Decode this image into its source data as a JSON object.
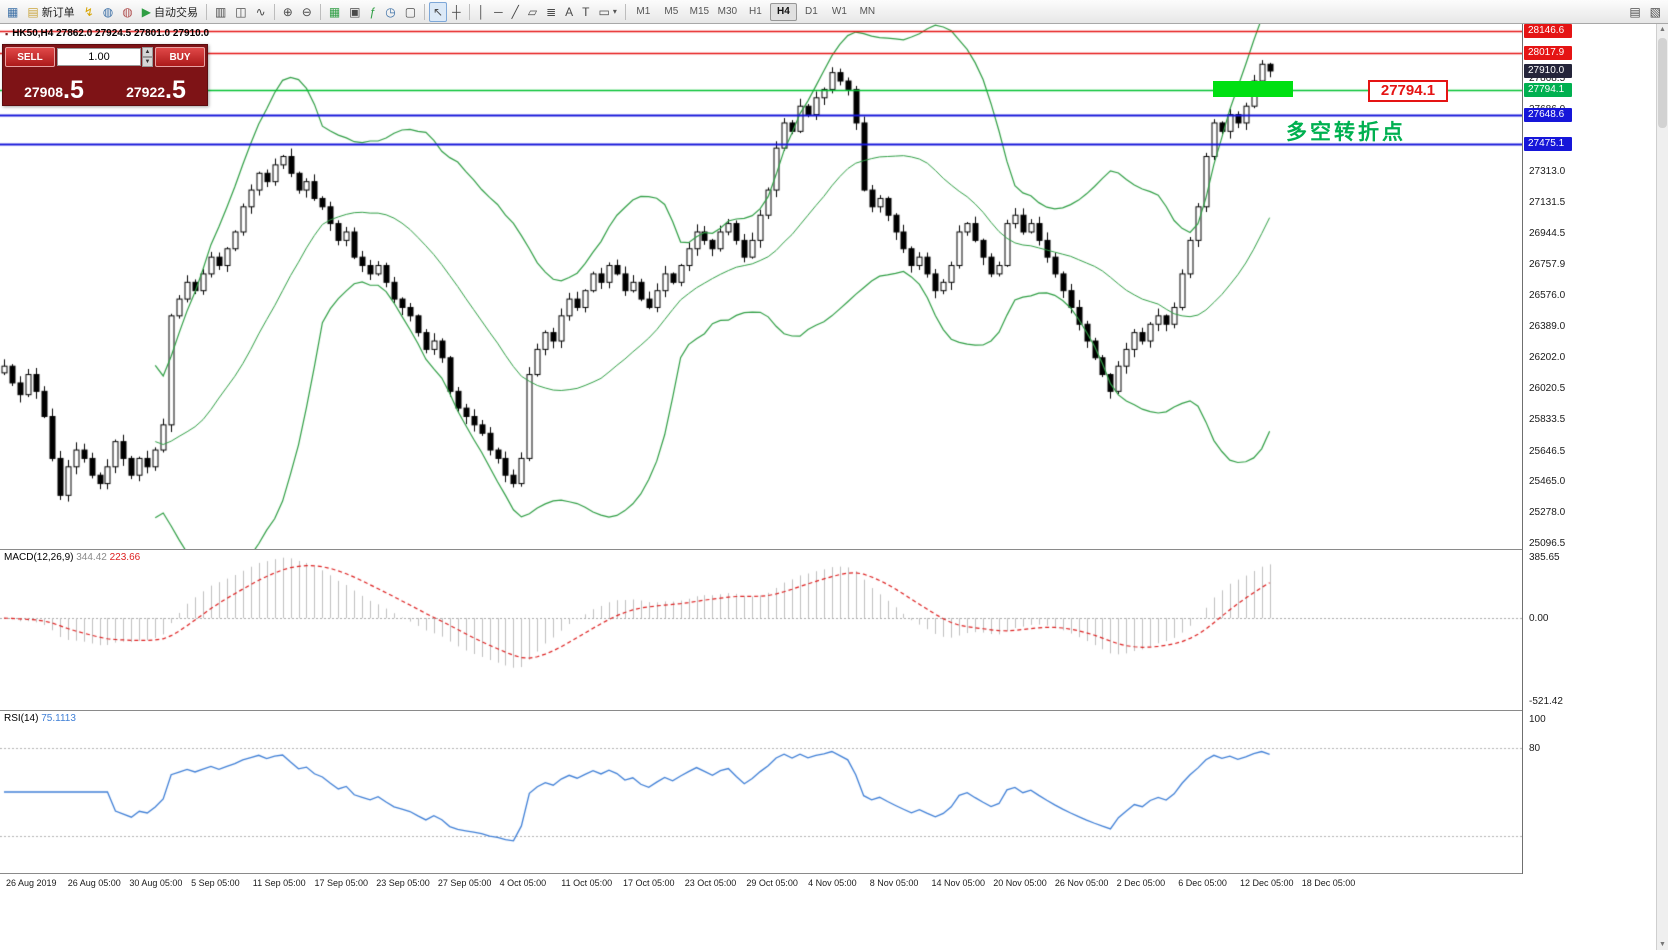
{
  "toolbar": {
    "items": [
      {
        "type": "btn",
        "name": "new-chart",
        "glyph": "▦",
        "color": "#3a6ea5"
      },
      {
        "type": "btn",
        "name": "new-order",
        "glyph": "▤",
        "color": "#caa53d",
        "label": "新订单"
      },
      {
        "type": "btn",
        "name": "alerts",
        "glyph": "↯",
        "color": "#d8a400"
      },
      {
        "type": "btn",
        "name": "market-watch",
        "glyph": "◍",
        "color": "#3a6ea5"
      },
      {
        "type": "btn",
        "name": "community",
        "glyph": "◍",
        "color": "#b05050"
      },
      {
        "type": "btn",
        "name": "algo-trading",
        "glyph": "▶",
        "color": "#2f9e44",
        "label": "自动交易"
      },
      {
        "type": "sep"
      },
      {
        "type": "btn",
        "name": "bar-chart-mode",
        "glyph": "▥"
      },
      {
        "type": "btn",
        "name": "candle-chart-mode",
        "glyph": "◫"
      },
      {
        "type": "btn",
        "name": "line-chart-mode",
        "glyph": "∿"
      },
      {
        "type": "sep"
      },
      {
        "type": "btn",
        "name": "zoom-in",
        "glyph": "⊕"
      },
      {
        "type": "btn",
        "name": "zoom-out",
        "glyph": "⊖"
      },
      {
        "type": "sep"
      },
      {
        "type": "btn",
        "name": "tile-windows",
        "glyph": "▦",
        "color": "#2f9e44"
      },
      {
        "type": "btn",
        "name": "auto-arrange",
        "glyph": "▣"
      },
      {
        "type": "btn",
        "name": "indicators",
        "glyph": "ƒ",
        "color": "#2f9e44"
      },
      {
        "type": "btn",
        "name": "periods",
        "glyph": "◷",
        "color": "#3a6ea5"
      },
      {
        "type": "btn",
        "name": "templates",
        "glyph": "▢"
      },
      {
        "type": "sep"
      },
      {
        "type": "btn",
        "name": "cursor-tool",
        "glyph": "↖",
        "active": true
      },
      {
        "type": "btn",
        "name": "crosshair-tool",
        "glyph": "┼"
      },
      {
        "type": "sep"
      },
      {
        "type": "btn",
        "name": "vertical-line-tool",
        "glyph": "│"
      },
      {
        "type": "btn",
        "name": "horizontal-line-tool",
        "glyph": "─"
      },
      {
        "type": "btn",
        "name": "trendline-tool",
        "glyph": "╱"
      },
      {
        "type": "btn",
        "name": "channel-tool",
        "glyph": "▱"
      },
      {
        "type": "btn",
        "name": "fibonacci-tool",
        "glyph": "≣"
      },
      {
        "type": "btn",
        "name": "text-tool",
        "glyph": "A"
      },
      {
        "type": "btn",
        "name": "label-tool",
        "glyph": "T"
      },
      {
        "type": "btn",
        "name": "shapes-tool",
        "glyph": "▭",
        "caret": true
      },
      {
        "type": "sep"
      }
    ],
    "timeframes": [
      {
        "label": "M1"
      },
      {
        "label": "M5"
      },
      {
        "label": "M15"
      },
      {
        "label": "M30"
      },
      {
        "label": "H1"
      },
      {
        "label": "H4",
        "active": true
      },
      {
        "label": "D1"
      },
      {
        "label": "W1"
      },
      {
        "label": "MN"
      }
    ],
    "right_items": [
      {
        "name": "data-window",
        "glyph": "▤"
      },
      {
        "name": "strategy-tester",
        "glyph": "▧"
      }
    ]
  },
  "chart": {
    "title_text": "HK50,H4 27862.0 27924.5 27801.0 27910.0",
    "trade_panel": {
      "sell_label": "SELL",
      "buy_label": "BUY",
      "volume": "1.00",
      "sell_price": "27908",
      "sell_frac": ".5",
      "buy_price": "27922",
      "buy_frac": ".5"
    },
    "annotation": {
      "label": "27794.1",
      "note": "多空转折点"
    },
    "lines": [
      {
        "price": 28146.6,
        "color": "#e51414",
        "width": 1.4
      },
      {
        "price": 28017.9,
        "color": "#e51414",
        "width": 1.4
      },
      {
        "price": 27794.1,
        "color": "#00c030",
        "width": 1.6
      },
      {
        "price": 27648.6,
        "color": "#1616d9",
        "width": 1.8
      },
      {
        "price": 27475.1,
        "color": "#1616d9",
        "width": 1.8
      }
    ],
    "price_scale_badges": [
      {
        "text": "28146.6",
        "price": 28146.6,
        "bg": "#e51414"
      },
      {
        "text": "28017.9",
        "price": 28017.9,
        "bg": "#e51414"
      },
      {
        "text": "27910.0",
        "price": 27910.0,
        "bg": "#25253a"
      },
      {
        "text": "27794.1",
        "price": 27794.1,
        "bg": "#00b050"
      },
      {
        "text": "27648.6",
        "price": 27648.6,
        "bg": "#1616d9"
      },
      {
        "text": "27475.1",
        "price": 27475.1,
        "bg": "#1616d9"
      }
    ],
    "price_scale_plain": [
      {
        "text": "27868.5",
        "price": 27868.5
      },
      {
        "text": "27686.0",
        "price": 27686.0
      },
      {
        "text": "27313.0",
        "price": 27313.0
      },
      {
        "text": "27131.5",
        "price": 27131.5
      },
      {
        "text": "26944.5",
        "price": 26944.5
      },
      {
        "text": "26757.9",
        "price": 26757.9
      },
      {
        "text": "26576.0",
        "price": 26576.0
      },
      {
        "text": "26389.0",
        "price": 26389.0
      },
      {
        "text": "26202.0",
        "price": 26202.0
      },
      {
        "text": "26020.5",
        "price": 26020.5
      },
      {
        "text": "25833.5",
        "price": 25833.5
      },
      {
        "text": "25646.5",
        "price": 25646.5
      },
      {
        "text": "25465.0",
        "price": 25465.0
      },
      {
        "text": "25278.0",
        "price": 25278.0
      },
      {
        "text": "25096.5",
        "price": 25096.5
      }
    ]
  },
  "macd": {
    "title": "MACD(12,26,9)",
    "value1": "344.42",
    "value2": "223.66",
    "scale": [
      {
        "text": "385.65",
        "value": 385.65
      },
      {
        "text": "0.00",
        "value": 0
      },
      {
        "text": "-521.42",
        "value": -521.42
      }
    ]
  },
  "rsi": {
    "title": "RSI(14)",
    "value": "75.1113",
    "scale": [
      {
        "text": "100",
        "value": 100
      },
      {
        "text": "80",
        "value": 80
      }
    ],
    "levels": [
      80,
      20
    ]
  },
  "time_axis": [
    "26 Aug 2019",
    "26 Aug 05:00",
    "30 Aug 05:00",
    "5 Sep 05:00",
    "11 Sep 05:00",
    "17 Sep 05:00",
    "23 Sep 05:00",
    "27 Sep 05:00",
    "4 Oct 05:00",
    "11 Oct 05:00",
    "17 Oct 05:00",
    "23 Oct 05:00",
    "29 Oct 05:00",
    "4 Nov 05:00",
    "8 Nov 05:00",
    "14 Nov 05:00",
    "20 Nov 05:00",
    "26 Nov 05:00",
    "2 Dec 05:00",
    "6 Dec 05:00",
    "12 Dec 05:00",
    "18 Dec 05:00"
  ],
  "colors": {
    "band": "#2f9e44",
    "candle_up": "#ffffff",
    "candle_down": "#000000",
    "macd_hist": "#bfbfbf",
    "macd_signal": "#dd2020",
    "rsi_line": "#3f7fd6",
    "level_dotted": "#b0b0b0"
  },
  "chart_data": {
    "type": "candlestick",
    "symbol": "HK50",
    "timeframe": "H4",
    "ohlc_summary": {
      "open": 27862.0,
      "high": 27924.5,
      "low": 27801.0,
      "close": 27910.0
    },
    "ylim": [
      25060,
      28190
    ],
    "indicators": {
      "bollinger": {
        "period": 20,
        "deviation": 2
      },
      "macd": {
        "fast": 12,
        "slow": 26,
        "signal": 9,
        "main": 344.42,
        "signal_value": 223.66
      },
      "rsi": {
        "period": 14,
        "value": 75.1113
      }
    },
    "levels": {
      "resistance_red": [
        28146.6,
        28017.9
      ],
      "pivot_green": 27794.1,
      "support_blue": [
        27648.6,
        27475.1
      ],
      "last_price": 27910.0
    },
    "closes": [
      26150,
      26050,
      25980,
      26100,
      26000,
      25850,
      25600,
      25380,
      25550,
      25650,
      25600,
      25500,
      25450,
      25550,
      25700,
      25600,
      25500,
      25600,
      25550,
      25650,
      25800,
      26450,
      26550,
      26650,
      26600,
      26700,
      26800,
      26750,
      26850,
      26950,
      27100,
      27200,
      27300,
      27250,
      27350,
      27400,
      27300,
      27200,
      27250,
      27150,
      27100,
      27000,
      26900,
      26950,
      26800,
      26750,
      26700,
      26750,
      26650,
      26550,
      26500,
      26450,
      26350,
      26250,
      26300,
      26200,
      26000,
      25900,
      25850,
      25800,
      25750,
      25650,
      25600,
      25500,
      25450,
      25600,
      26100,
      26250,
      26350,
      26300,
      26450,
      26550,
      26500,
      26600,
      26700,
      26650,
      26750,
      26700,
      26600,
      26650,
      26550,
      26500,
      26600,
      26700,
      26650,
      26750,
      26850,
      26950,
      26900,
      26850,
      26950,
      27000,
      26900,
      26800,
      26900,
      27050,
      27200,
      27450,
      27600,
      27550,
      27700,
      27650,
      27750,
      27800,
      27900,
      27850,
      27800,
      27600,
      27200,
      27100,
      27150,
      27050,
      26950,
      26850,
      26750,
      26800,
      26700,
      26600,
      26650,
      26750,
      26950,
      27000,
      26900,
      26800,
      26700,
      26750,
      27000,
      27050,
      26950,
      27000,
      26900,
      26800,
      26700,
      26600,
      26500,
      26400,
      26300,
      26200,
      26100,
      26000,
      26150,
      26250,
      26350,
      26300,
      26400,
      26450,
      26400,
      26500,
      26700,
      26900,
      27100,
      27400,
      27600,
      27550,
      27650,
      27600,
      27700,
      27850,
      27950,
      27910
    ]
  }
}
